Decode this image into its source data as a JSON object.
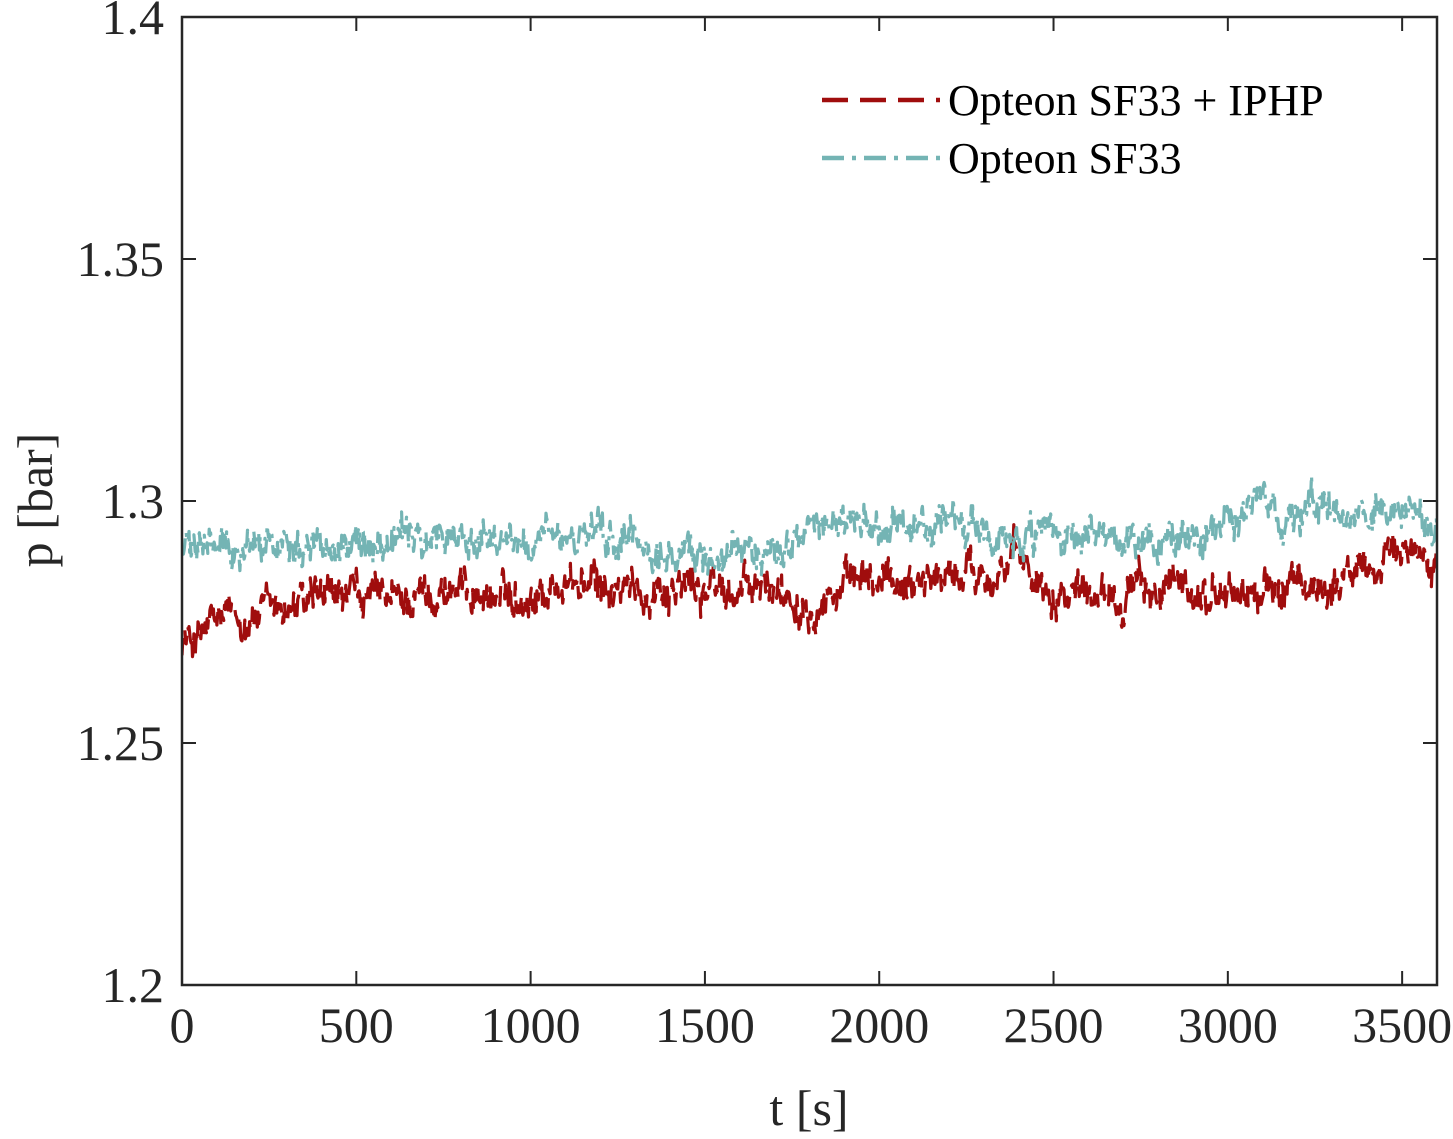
{
  "chart_data": {
    "type": "line",
    "title": "",
    "xlabel": "t [s]",
    "ylabel": "p [bar]",
    "xlim": [
      0,
      3600
    ],
    "ylim": [
      1.2,
      1.4
    ],
    "xticks": [
      0,
      500,
      1000,
      1500,
      2000,
      2500,
      3000,
      3500
    ],
    "xtick_labels": [
      "0",
      "500",
      "1000",
      "1500",
      "2000",
      "2500",
      "3000",
      "3500"
    ],
    "yticks": [
      1.2,
      1.25,
      1.3,
      1.35,
      1.4
    ],
    "ytick_labels": [
      "1.2",
      "1.25",
      "1.3",
      "1.35",
      "1.4"
    ],
    "grid": false,
    "legend_position": "top-right",
    "series": [
      {
        "name": "Opteon SF33 + IPHP",
        "color": "#a00d0d",
        "style": "dashed",
        "x": [
          0,
          25,
          50,
          100,
          200,
          300,
          400,
          500,
          600,
          700,
          800,
          900,
          1000,
          1100,
          1200,
          1300,
          1400,
          1500,
          1600,
          1700,
          1800,
          1900,
          2000,
          2100,
          2200,
          2300,
          2400,
          2500,
          2600,
          2700,
          2800,
          2900,
          3000,
          3100,
          3200,
          3300,
          3400,
          3500,
          3600
        ],
        "y": [
          1.272,
          1.271,
          1.272,
          1.275,
          1.276,
          1.278,
          1.279,
          1.28,
          1.279,
          1.281,
          1.282,
          1.28,
          1.281,
          1.283,
          1.282,
          1.281,
          1.283,
          1.282,
          1.281,
          1.282,
          1.28,
          1.282,
          1.283,
          1.284,
          1.285,
          1.286,
          1.287,
          1.282,
          1.283,
          1.281,
          1.282,
          1.28,
          1.281,
          1.281,
          1.282,
          1.283,
          1.286,
          1.289,
          1.29
        ],
        "noise": 0.0035
      },
      {
        "name": "Opteon SF33",
        "color": "#74b4b4",
        "style": "dashdot",
        "x": [
          0,
          100,
          200,
          300,
          400,
          500,
          600,
          700,
          800,
          900,
          1000,
          1100,
          1200,
          1300,
          1400,
          1500,
          1600,
          1700,
          1800,
          1900,
          2000,
          2100,
          2200,
          2300,
          2400,
          2500,
          2600,
          2700,
          2800,
          2900,
          3000,
          3100,
          3200,
          3300,
          3400,
          3500,
          3600
        ],
        "y": [
          1.29,
          1.29,
          1.291,
          1.292,
          1.292,
          1.291,
          1.293,
          1.292,
          1.292,
          1.293,
          1.291,
          1.292,
          1.292,
          1.291,
          1.288,
          1.289,
          1.29,
          1.29,
          1.293,
          1.296,
          1.292,
          1.294,
          1.296,
          1.293,
          1.291,
          1.292,
          1.291,
          1.292,
          1.29,
          1.293,
          1.295,
          1.298,
          1.298,
          1.298,
          1.298,
          1.297,
          1.294
        ],
        "noise": 0.0032
      }
    ]
  }
}
